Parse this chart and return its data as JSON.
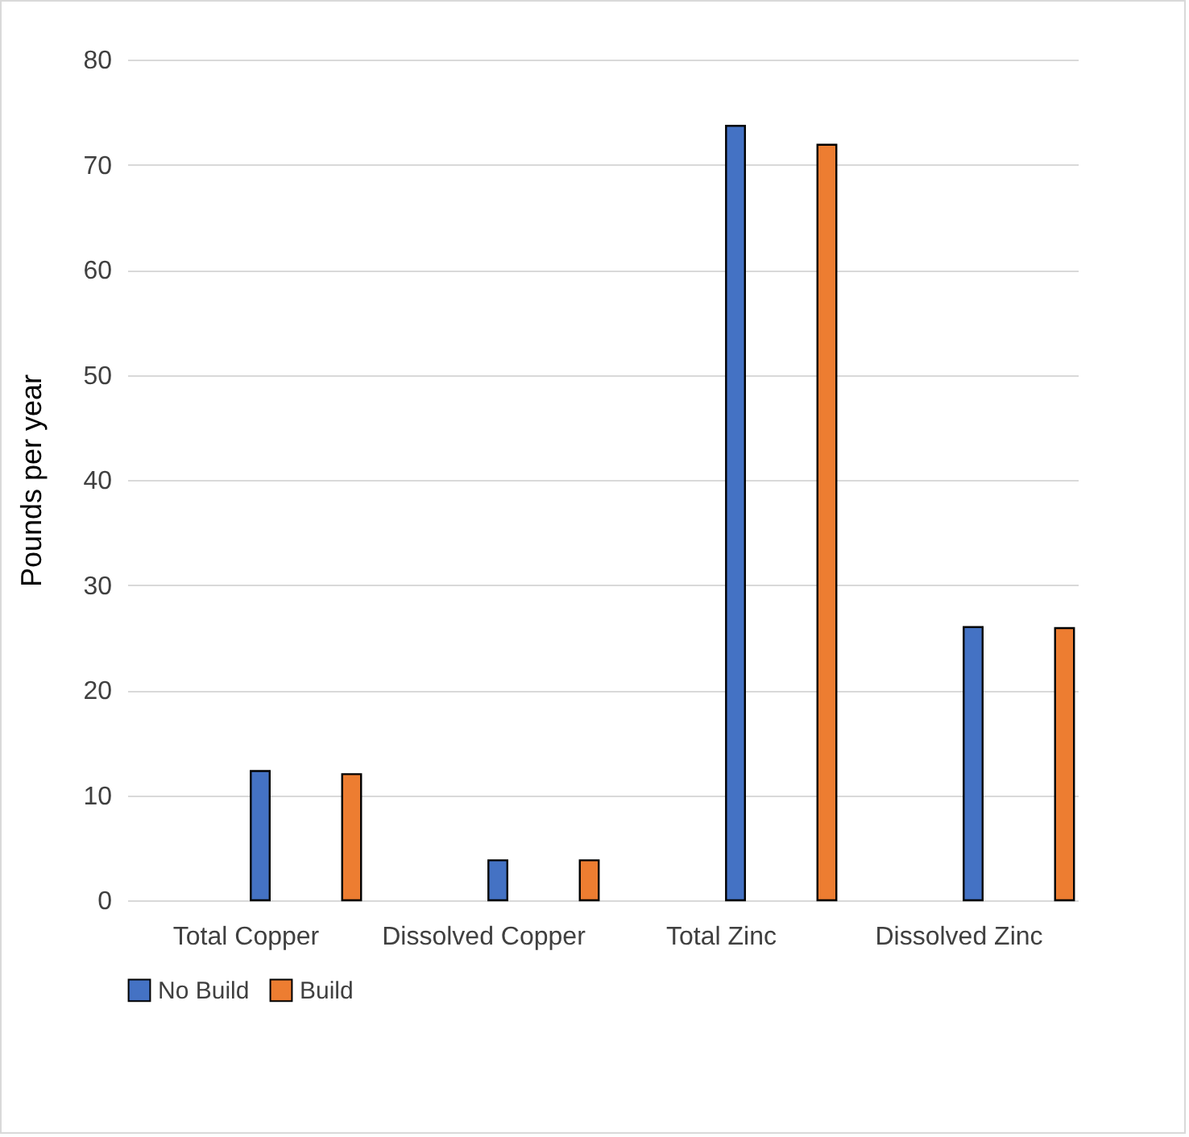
{
  "chart_data": {
    "type": "bar",
    "ylabel": "Pounds per year",
    "categories": [
      "Total Copper",
      "Dissolved Copper",
      "Total Zinc",
      "Dissolved Zinc"
    ],
    "series": [
      {
        "name": "No Build",
        "color": "#4472c4",
        "values": [
          12.3,
          3.8,
          73.7,
          26.0
        ]
      },
      {
        "name": "Build",
        "color": "#ed7d31",
        "values": [
          12.0,
          3.8,
          71.9,
          25.9
        ]
      }
    ],
    "ylim": [
      0,
      80
    ],
    "yticks": [
      0,
      10,
      20,
      30,
      40,
      50,
      60,
      70,
      80
    ],
    "grid": "y",
    "legend": "bottom"
  }
}
